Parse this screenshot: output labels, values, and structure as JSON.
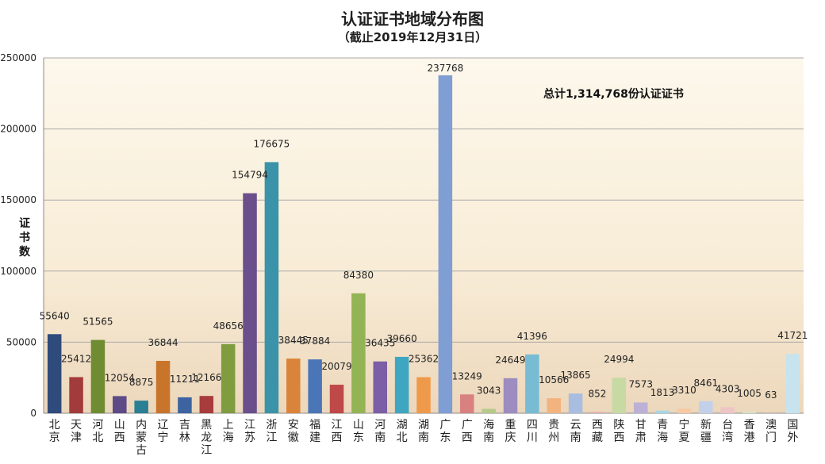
{
  "chart_data": {
    "type": "bar",
    "title": "认证证书地域分布图",
    "subtitle": "（截止2019年12月31日）",
    "ylabel": "证书数",
    "xlabel": "",
    "ylim": [
      0,
      250000
    ],
    "yticks": [
      "0",
      "50000",
      "100000",
      "150000",
      "200000",
      "250000"
    ],
    "grid": true,
    "annotation": "总计1,314,768份认证证书",
    "categories": [
      "北京",
      "天津",
      "河北",
      "山西",
      "内蒙古",
      "辽宁",
      "吉林",
      "黑龙江",
      "上海",
      "江苏",
      "浙江",
      "安徽",
      "福建",
      "江西",
      "山东",
      "河南",
      "湖北",
      "湖南",
      "广东",
      "广西",
      "海南",
      "重庆",
      "四川",
      "贵州",
      "云南",
      "西藏",
      "陕西",
      "甘肃",
      "青海",
      "宁夏",
      "新疆",
      "台湾",
      "香港",
      "澳门",
      "国外"
    ],
    "values": [
      55640,
      25412,
      51565,
      12054,
      8875,
      36844,
      11211,
      12166,
      48656,
      154794,
      176675,
      38445,
      37884,
      20079,
      84380,
      36435,
      39660,
      25362,
      237768,
      13249,
      3043,
      24649,
      41396,
      10566,
      13865,
      852,
      24994,
      7573,
      1813,
      3310,
      8461,
      4303,
      1005,
      63,
      41721
    ],
    "value_labels": [
      "55640",
      "25412",
      "51565",
      "12054",
      "8875",
      "36844",
      "11211",
      "12166",
      "48656",
      "154794",
      "176675",
      "38445",
      "37884",
      "20079",
      "84380",
      "36435",
      "39660",
      "25362",
      "237768",
      "13249",
      "3043",
      "24649",
      "41396",
      "10566",
      "13865",
      "852",
      "24994",
      "7573",
      "1813",
      "3310",
      "8461",
      "4303",
      "1005",
      "63",
      "41721"
    ],
    "colors": [
      "#2f4b7c",
      "#a23b3b",
      "#6f8c33",
      "#5e4a87",
      "#2a7f94",
      "#c8752b",
      "#3d64a0",
      "#a83c3c",
      "#7f9c3f",
      "#6a4f8c",
      "#3a93a8",
      "#d9843a",
      "#4a76b8",
      "#bf4848",
      "#93b454",
      "#7b5ea6",
      "#3fa6c2",
      "#ef9a4a",
      "#7f9ed3",
      "#d98080",
      "#b5c98a",
      "#9d8cbf",
      "#78bcd4",
      "#f3b37e",
      "#a9bde0",
      "#e4a8a8",
      "#c8daa4",
      "#bcb0d6",
      "#a6d6e4",
      "#f7c9a3",
      "#c3d0ea",
      "#eec5c5",
      "#d7e5bf",
      "#d6cfe5",
      "#c6e3ee"
    ]
  }
}
